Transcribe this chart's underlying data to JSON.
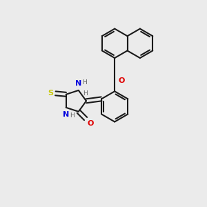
{
  "bg_color": "#ebebeb",
  "bond_color": "#1a1a1a",
  "line_width": 1.5,
  "atoms": {
    "S": {
      "color": "#c8c800",
      "size": 8
    },
    "O": {
      "color": "#e00000",
      "size": 8
    },
    "N": {
      "color": "#0000dd",
      "size": 8
    },
    "H_label": {
      "color": "#606060",
      "size": 6.5
    }
  },
  "xlim": [
    0,
    10
  ],
  "ylim": [
    0,
    10
  ]
}
